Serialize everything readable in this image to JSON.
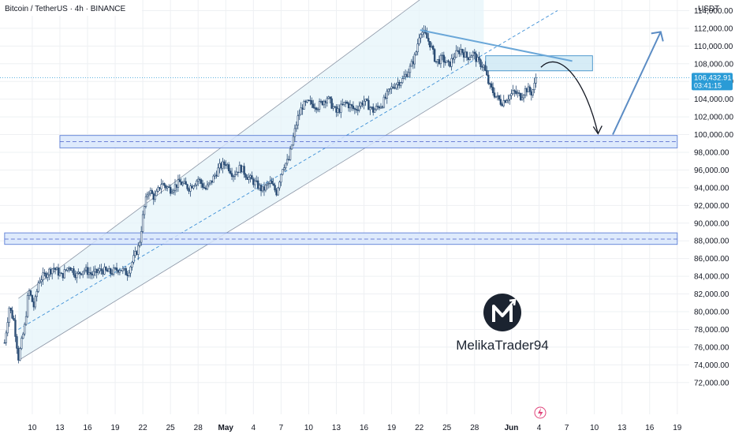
{
  "header": {
    "title": "Bitcoin / TetherUS · 4h · BINANCE"
  },
  "price_axis": {
    "currency": "USDT",
    "last_price": "106,432.91",
    "countdown": "03:41:15"
  },
  "watermark": {
    "brand": "MelikaTrader94",
    "logo_letter": "M"
  },
  "colors": {
    "up_candle": "#2b4d75",
    "down_candle": "#2b4d75",
    "channel_fill": "#e6f4fa",
    "zone_fill": "#d8e6fc",
    "zone_border": "#5d7fd6",
    "trendline": "#6aa7d8",
    "projection": "#5b8cc4",
    "curve": "#131722",
    "grid": "#eef0f3",
    "price_tag": "#2a9bd6"
  },
  "chart_data": {
    "type": "candlestick",
    "title": "Bitcoin / TetherUS · 4h · BINANCE",
    "xlabel": "",
    "ylabel": "USDT",
    "ylim": [
      71000,
      116000
    ],
    "grid": true,
    "y_ticks": [
      72000,
      74000,
      76000,
      78000,
      80000,
      82000,
      84000,
      86000,
      88000,
      90000,
      92000,
      94000,
      96000,
      98000,
      100000,
      102000,
      104000,
      106000,
      108000,
      110000,
      112000,
      114000
    ],
    "y_tick_labels": [
      "72,000.00",
      "74,000.00",
      "76,000.00",
      "78,000.00",
      "80,000.00",
      "82,000.00",
      "84,000.00",
      "86,000.00",
      "88,000.00",
      "90,000.00",
      "92,000.00",
      "94,000.00",
      "96,000.00",
      "98,000.00",
      "100,000.00",
      "102,000.00",
      "104,000.00",
      "106,000.00",
      "108,000.00",
      "110,000.00",
      "112,000.00",
      "114,000.00"
    ],
    "x_day_range": [
      7,
      80
    ],
    "x_ticks": [
      {
        "day": 10,
        "label": "10"
      },
      {
        "day": 13,
        "label": "13"
      },
      {
        "day": 16,
        "label": "16"
      },
      {
        "day": 19,
        "label": "19"
      },
      {
        "day": 22,
        "label": "22"
      },
      {
        "day": 25,
        "label": "25"
      },
      {
        "day": 28,
        "label": "28"
      },
      {
        "day": 31,
        "label": "May"
      },
      {
        "day": 34,
        "label": "4"
      },
      {
        "day": 37,
        "label": "7"
      },
      {
        "day": 40,
        "label": "10"
      },
      {
        "day": 43,
        "label": "13"
      },
      {
        "day": 46,
        "label": "16"
      },
      {
        "day": 49,
        "label": "19"
      },
      {
        "day": 52,
        "label": "22"
      },
      {
        "day": 55,
        "label": "25"
      },
      {
        "day": 58,
        "label": "28"
      },
      {
        "day": 62,
        "label": "Jun"
      },
      {
        "day": 65,
        "label": "4"
      },
      {
        "day": 68,
        "label": "7"
      },
      {
        "day": 71,
        "label": "10"
      },
      {
        "day": 74,
        "label": "13"
      },
      {
        "day": 77,
        "label": "16"
      },
      {
        "day": 80,
        "label": "19"
      }
    ],
    "price_path": [
      {
        "day": 7.0,
        "price": 76500
      },
      {
        "day": 7.5,
        "price": 80500
      },
      {
        "day": 8.0,
        "price": 79000
      },
      {
        "day": 8.5,
        "price": 74800
      },
      {
        "day": 9.2,
        "price": 78500
      },
      {
        "day": 9.6,
        "price": 82500
      },
      {
        "day": 10.2,
        "price": 80500
      },
      {
        "day": 10.7,
        "price": 83500
      },
      {
        "day": 11.5,
        "price": 84300
      },
      {
        "day": 12.3,
        "price": 85000
      },
      {
        "day": 13.2,
        "price": 84000
      },
      {
        "day": 14.0,
        "price": 85200
      },
      {
        "day": 14.8,
        "price": 84100
      },
      {
        "day": 15.6,
        "price": 84800
      },
      {
        "day": 16.5,
        "price": 84200
      },
      {
        "day": 17.5,
        "price": 84700
      },
      {
        "day": 18.5,
        "price": 84400
      },
      {
        "day": 19.5,
        "price": 84900
      },
      {
        "day": 20.3,
        "price": 84300
      },
      {
        "day": 21.0,
        "price": 86000
      },
      {
        "day": 21.6,
        "price": 87500
      },
      {
        "day": 22.1,
        "price": 91500
      },
      {
        "day": 22.6,
        "price": 93800
      },
      {
        "day": 23.3,
        "price": 92800
      },
      {
        "day": 24.0,
        "price": 94500
      },
      {
        "day": 25.0,
        "price": 93800
      },
      {
        "day": 26.0,
        "price": 94600
      },
      {
        "day": 27.0,
        "price": 94000
      },
      {
        "day": 28.0,
        "price": 95000
      },
      {
        "day": 28.8,
        "price": 93800
      },
      {
        "day": 29.5,
        "price": 94800
      },
      {
        "day": 30.3,
        "price": 96300
      },
      {
        "day": 31.0,
        "price": 96800
      },
      {
        "day": 31.8,
        "price": 95500
      },
      {
        "day": 32.6,
        "price": 96300
      },
      {
        "day": 33.4,
        "price": 95200
      },
      {
        "day": 34.2,
        "price": 94500
      },
      {
        "day": 35.0,
        "price": 93700
      },
      {
        "day": 35.8,
        "price": 94600
      },
      {
        "day": 36.5,
        "price": 93500
      },
      {
        "day": 37.2,
        "price": 96500
      },
      {
        "day": 37.8,
        "price": 97000
      },
      {
        "day": 38.3,
        "price": 99500
      },
      {
        "day": 38.8,
        "price": 101800
      },
      {
        "day": 39.3,
        "price": 103200
      },
      {
        "day": 40.0,
        "price": 103600
      },
      {
        "day": 41.0,
        "price": 103200
      },
      {
        "day": 42.0,
        "price": 104200
      },
      {
        "day": 43.0,
        "price": 102500
      },
      {
        "day": 44.0,
        "price": 103600
      },
      {
        "day": 45.0,
        "price": 102800
      },
      {
        "day": 46.0,
        "price": 103800
      },
      {
        "day": 47.0,
        "price": 102700
      },
      {
        "day": 48.0,
        "price": 103500
      },
      {
        "day": 48.8,
        "price": 105000
      },
      {
        "day": 49.5,
        "price": 105800
      },
      {
        "day": 50.2,
        "price": 106200
      },
      {
        "day": 51.0,
        "price": 107500
      },
      {
        "day": 51.6,
        "price": 109000
      },
      {
        "day": 52.1,
        "price": 111800
      },
      {
        "day": 52.6,
        "price": 111300
      },
      {
        "day": 53.2,
        "price": 110200
      },
      {
        "day": 53.8,
        "price": 108200
      },
      {
        "day": 54.5,
        "price": 108600
      },
      {
        "day": 55.2,
        "price": 107800
      },
      {
        "day": 55.8,
        "price": 108900
      },
      {
        "day": 56.5,
        "price": 109600
      },
      {
        "day": 57.2,
        "price": 108700
      },
      {
        "day": 57.8,
        "price": 109200
      },
      {
        "day": 58.4,
        "price": 108200
      },
      {
        "day": 59.0,
        "price": 107700
      },
      {
        "day": 59.6,
        "price": 105500
      },
      {
        "day": 60.2,
        "price": 104500
      },
      {
        "day": 60.9,
        "price": 103600
      },
      {
        "day": 61.6,
        "price": 104200
      },
      {
        "day": 62.3,
        "price": 104800
      },
      {
        "day": 63.0,
        "price": 104300
      },
      {
        "day": 63.6,
        "price": 105200
      },
      {
        "day": 64.2,
        "price": 104700
      },
      {
        "day": 64.8,
        "price": 106432
      }
    ],
    "channel": {
      "upper": [
        {
          "day": 8.5,
          "price": 81500
        },
        {
          "day": 55,
          "price": 117500
        }
      ],
      "mid": [
        {
          "day": 8.5,
          "price": 78000
        },
        {
          "day": 67,
          "price": 114000
        }
      ],
      "lower": [
        {
          "day": 8.5,
          "price": 74500
        },
        {
          "day": 59,
          "price": 106700
        }
      ]
    },
    "resistance_line": [
      {
        "day": 52.1,
        "price": 111800
      },
      {
        "day": 68.6,
        "price": 108300
      }
    ],
    "zones": [
      {
        "name": "upper-box",
        "day_from": 59.2,
        "day_to": 70.8,
        "price_from": 107200,
        "price_to": 108900
      },
      {
        "name": "mid-zone",
        "day_from": 13.0,
        "day_to": 80,
        "price_from": 98500,
        "price_to": 99900,
        "mid": 99200
      },
      {
        "name": "low-zone",
        "day_from": 7.0,
        "day_to": 80,
        "price_from": 87600,
        "price_to": 88900,
        "mid": 88200
      }
    ],
    "projection": {
      "curve_start": {
        "day": 65.2,
        "price": 107600
      },
      "curve_end": {
        "day": 71.4,
        "price": 100100
      },
      "up_start": {
        "day": 73.0,
        "price": 100000
      },
      "up_end": {
        "day": 78.2,
        "price": 111600
      }
    }
  }
}
